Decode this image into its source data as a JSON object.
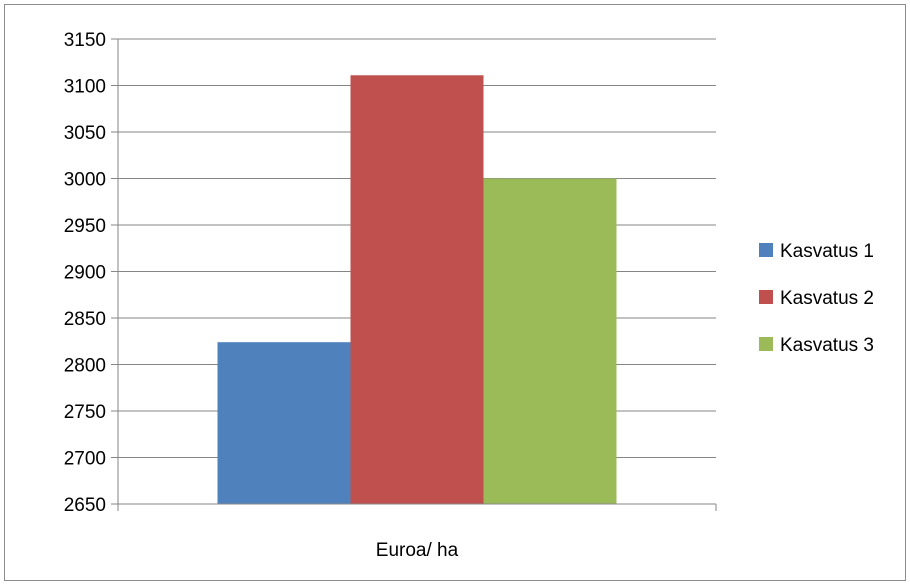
{
  "chart_data": {
    "type": "bar",
    "categories": [
      "Euroa/ ha"
    ],
    "series": [
      {
        "name": "Kasvatus 1",
        "values": [
          2824
        ],
        "color": "#4f81bd"
      },
      {
        "name": "Kasvatus 2",
        "values": [
          3111
        ],
        "color": "#c0504d"
      },
      {
        "name": "Kasvatus 3",
        "values": [
          3000
        ],
        "color": "#9bbb59"
      }
    ],
    "title": "",
    "xlabel": "",
    "ylabel": "",
    "ylim": [
      2650,
      3150
    ],
    "yticks": [
      2650,
      2700,
      2750,
      2800,
      2850,
      2900,
      2950,
      3000,
      3050,
      3100,
      3150
    ],
    "grid": true,
    "legend_position": "right"
  }
}
